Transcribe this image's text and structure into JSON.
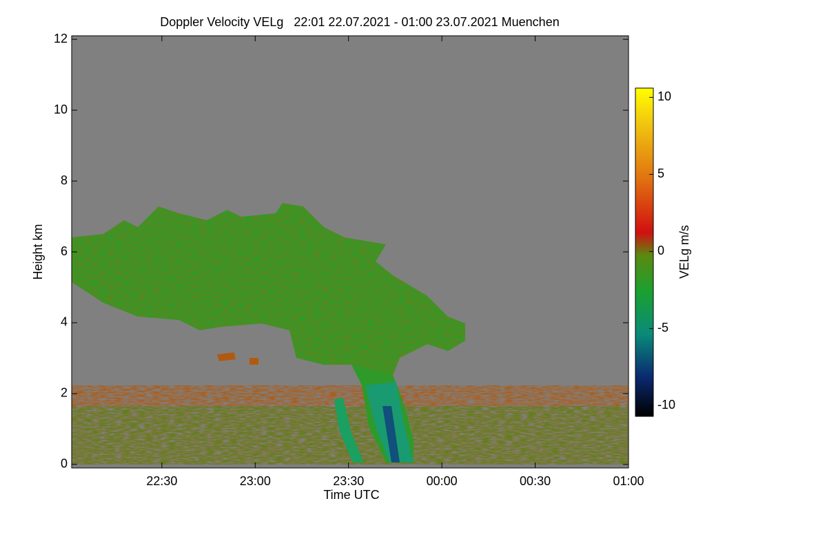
{
  "chart_data": {
    "type": "heatmap",
    "title": "Doppler Velocity VELg   22:01 22.07.2021 - 01:00 23.07.2021 Muenchen",
    "x_label": "Time UTC",
    "y_label": "Height km",
    "xlim": [
      22.0167,
      25.0
    ],
    "xticks": [
      {
        "value": 22.5,
        "label": "22:30"
      },
      {
        "value": 23.0,
        "label": "23:00"
      },
      {
        "value": 23.5,
        "label": "23:30"
      },
      {
        "value": 24.0,
        "label": "00:00"
      },
      {
        "value": 24.5,
        "label": "00:30"
      },
      {
        "value": 25.0,
        "label": "01:00"
      }
    ],
    "ylim": [
      -0.1,
      12.1
    ],
    "yticks": [
      0,
      2,
      4,
      6,
      8,
      10,
      12
    ],
    "colorbar": {
      "label": "VELg m/s",
      "lim": [
        -10.7,
        10.6
      ],
      "ticks": [
        -10,
        -5,
        0,
        5,
        10
      ]
    }
  }
}
